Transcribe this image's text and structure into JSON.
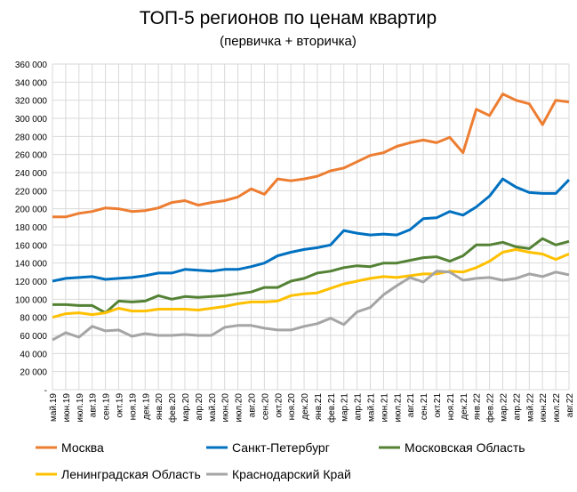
{
  "chart_data": {
    "type": "line",
    "title": "ТОП-5 регионов по ценам квартир",
    "subtitle": "(первичка + вторичка)",
    "xlabel": "",
    "ylabel": "",
    "ylim": [
      0,
      360000
    ],
    "y_tick_step": 20000,
    "y_tick_labels": [
      "-",
      "20 000",
      "40 000",
      "60 000",
      "80 000",
      "100 000",
      "120 000",
      "140 000",
      "160 000",
      "180 000",
      "200 000",
      "220 000",
      "240 000",
      "260 000",
      "280 000",
      "300 000",
      "320 000",
      "340 000",
      "360 000"
    ],
    "grid": true,
    "legend_position": "bottom",
    "categories": [
      "май.19",
      "июн.19",
      "июл.19",
      "авг.19",
      "сен.19",
      "окт.19",
      "ноя.19",
      "дек.19",
      "янв.20",
      "фев.20",
      "мар.20",
      "апр.20",
      "май.20",
      "июн.20",
      "июл.20",
      "авг.20",
      "сен.20",
      "окт.20",
      "ноя.20",
      "дек.20",
      "янв.21",
      "фев.21",
      "мар.21",
      "апр.21",
      "май.21",
      "июн.21",
      "июл.21",
      "авг.21",
      "сен.21",
      "окт.21",
      "ноя.21",
      "дек.21",
      "янв.22",
      "фев.22",
      "мар.22",
      "апр.22",
      "май.22",
      "июн.22",
      "июл.22",
      "авг.22"
    ],
    "series": [
      {
        "name": "Москва",
        "color": "#ED7D31",
        "values": [
          191000,
          191000,
          195000,
          197000,
          201000,
          200000,
          197000,
          198000,
          201000,
          207000,
          209000,
          204000,
          207000,
          209000,
          213000,
          222000,
          216000,
          233000,
          231000,
          233000,
          236000,
          242000,
          245000,
          252000,
          259000,
          262000,
          269000,
          273000,
          276000,
          273000,
          279000,
          262000,
          310000,
          303000,
          327000,
          320000,
          316000,
          293000,
          320000,
          318000
        ]
      },
      {
        "name": "Санкт-Петербург",
        "color": "#0070C0",
        "values": [
          120000,
          123000,
          124000,
          125000,
          122000,
          123000,
          124000,
          126000,
          129000,
          129000,
          133000,
          132000,
          131000,
          133000,
          133000,
          136000,
          140000,
          148000,
          152000,
          155000,
          157000,
          160000,
          176000,
          173000,
          171000,
          172000,
          171000,
          177000,
          189000,
          190000,
          197000,
          193000,
          202000,
          214000,
          233000,
          224000,
          218000,
          217000,
          217000,
          232000
        ]
      },
      {
        "name": "Московская Область",
        "color": "#548235",
        "values": [
          94000,
          94000,
          93000,
          93000,
          85000,
          98000,
          97000,
          98000,
          104000,
          100000,
          103000,
          102000,
          103000,
          104000,
          106000,
          108000,
          113000,
          113000,
          120000,
          123000,
          129000,
          131000,
          135000,
          137000,
          136000,
          140000,
          140000,
          143000,
          146000,
          147000,
          142000,
          148000,
          160000,
          160000,
          163000,
          158000,
          156000,
          167000,
          160000,
          164000
        ]
      },
      {
        "name": "Ленинградская Область",
        "color": "#FFC000",
        "values": [
          80000,
          84000,
          85000,
          83000,
          85000,
          90000,
          87000,
          87000,
          89000,
          89000,
          89000,
          88000,
          90000,
          92000,
          95000,
          97000,
          97000,
          98000,
          104000,
          106000,
          107000,
          112000,
          117000,
          120000,
          123000,
          125000,
          124000,
          126000,
          128000,
          128000,
          131000,
          130000,
          135000,
          142000,
          152000,
          155000,
          152000,
          150000,
          144000,
          150000
        ]
      },
      {
        "name": "Краснодарский Край",
        "color": "#A5A5A5",
        "values": [
          55000,
          63000,
          58000,
          70000,
          65000,
          66000,
          59000,
          62000,
          60000,
          60000,
          61000,
          60000,
          60000,
          69000,
          71000,
          71000,
          68000,
          66000,
          66000,
          70000,
          73000,
          79000,
          72000,
          86000,
          91000,
          105000,
          115000,
          124000,
          119000,
          131000,
          130000,
          121000,
          123000,
          124000,
          121000,
          123000,
          128000,
          125000,
          130000,
          127000
        ]
      }
    ]
  }
}
